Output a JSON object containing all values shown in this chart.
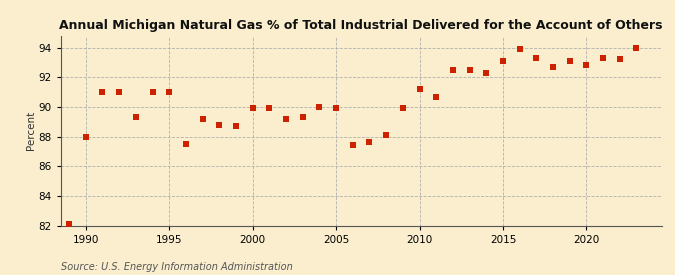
{
  "title": "Annual Michigan Natural Gas % of Total Industrial Delivered for the Account of Others",
  "ylabel": "Percent",
  "source": "Source: U.S. Energy Information Administration",
  "background_color": "#faeece",
  "marker_color": "#cc2200",
  "xlim": [
    1988.5,
    2024.5
  ],
  "ylim": [
    82,
    94.8
  ],
  "yticks": [
    82,
    84,
    86,
    88,
    90,
    92,
    94
  ],
  "xticks": [
    1990,
    1995,
    2000,
    2005,
    2010,
    2015,
    2020
  ],
  "years": [
    1989,
    1990,
    1991,
    1992,
    1993,
    1994,
    1995,
    1996,
    1997,
    1998,
    1999,
    2000,
    2001,
    2002,
    2003,
    2004,
    2005,
    2006,
    2007,
    2008,
    2009,
    2010,
    2011,
    2012,
    2013,
    2014,
    2015,
    2016,
    2017,
    2018,
    2019,
    2020,
    2021,
    2022,
    2023
  ],
  "values": [
    82.1,
    88.0,
    91.0,
    91.0,
    89.3,
    91.0,
    91.0,
    87.5,
    89.2,
    88.8,
    88.7,
    89.9,
    89.9,
    89.2,
    89.3,
    90.0,
    89.9,
    87.4,
    87.6,
    88.1,
    89.9,
    91.2,
    90.7,
    92.5,
    92.5,
    92.3,
    93.1,
    93.9,
    93.3,
    92.7,
    93.1,
    92.8,
    93.3,
    93.2,
    94.0
  ],
  "title_fontsize": 9.0,
  "tick_fontsize": 7.5,
  "ylabel_fontsize": 7.5,
  "source_fontsize": 7.0,
  "marker_size": 14
}
